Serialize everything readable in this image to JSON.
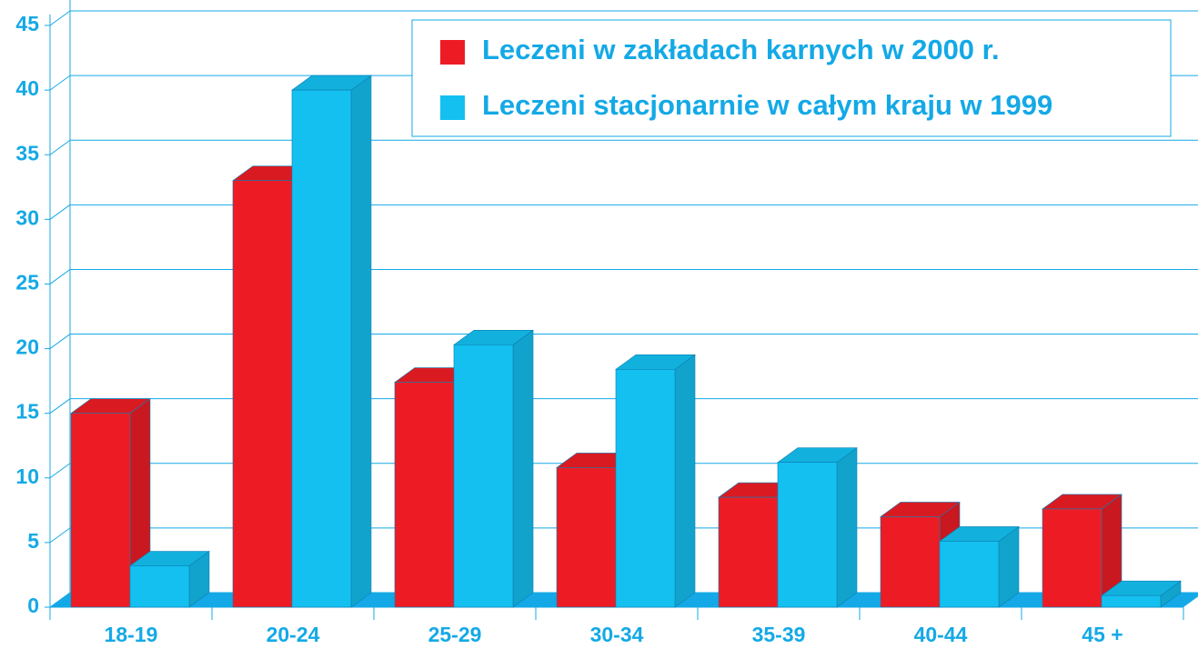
{
  "chart_data": {
    "type": "bar3d",
    "categories": [
      "18-19",
      "20-24",
      "25-29",
      "30-34",
      "35-39",
      "40-44",
      "45 +"
    ],
    "series": [
      {
        "name": "Leczeni w zakładach karnych w 2000 r.",
        "color": "#ed1c24",
        "values": [
          15,
          33,
          17.4,
          10.8,
          8.5,
          7,
          7.6
        ]
      },
      {
        "name": "Leczeni stacjonarnie w całym kraju w 1999",
        "color": "#14c0f0",
        "values": [
          3.2,
          40,
          20.3,
          18.4,
          11.2,
          5.1,
          0.9
        ]
      }
    ],
    "ylim": [
      0,
      45
    ],
    "yticks": [
      0,
      5,
      10,
      15,
      20,
      25,
      30,
      35,
      40,
      45
    ],
    "grid": true
  }
}
